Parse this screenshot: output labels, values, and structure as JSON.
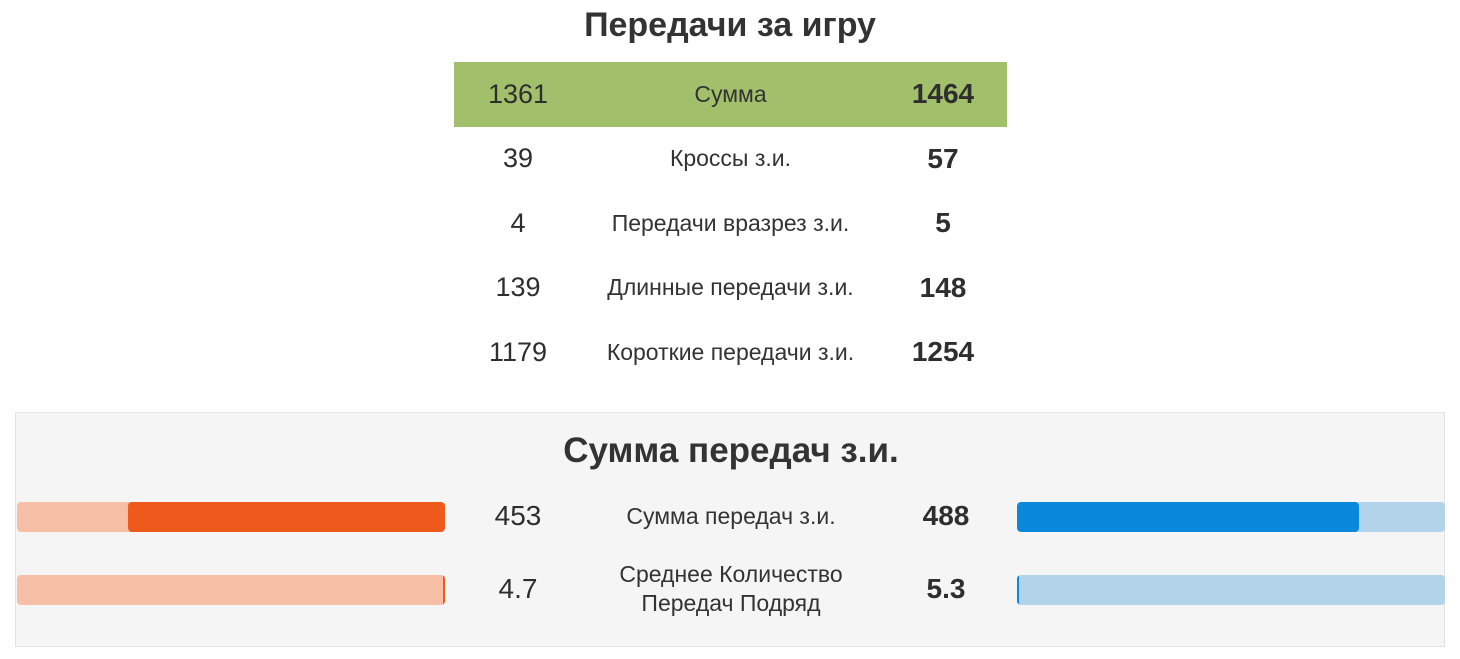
{
  "passes_per_game": {
    "title": "Передачи за игру",
    "rows": [
      {
        "left": "1361",
        "label": "Сумма",
        "right": "1464"
      },
      {
        "left": "39",
        "label": "Кроссы з.и.",
        "right": "57"
      },
      {
        "left": "4",
        "label": "Передачи вразрез з.и.",
        "right": "5"
      },
      {
        "left": "139",
        "label": "Длинные передачи з.и.",
        "right": "148"
      },
      {
        "left": "1179",
        "label": "Короткие передачи з.и.",
        "right": "1254"
      }
    ]
  },
  "completed_passes": {
    "title": "Сумма передач з.и.",
    "rows": [
      {
        "left": "453",
        "label": "Сумма передач з.и.",
        "right": "488",
        "left_share": 0.74,
        "right_share": 0.8
      },
      {
        "left": "4.7",
        "label_line1": "Среднее Количество",
        "label_line2": "Передач Подряд",
        "right": "5.3",
        "left_share": 0.005,
        "right_share": 0.005
      }
    ]
  },
  "colors": {
    "total_row": "#a2c06b",
    "left_fill": "#ee5a1c",
    "left_track": "#f7bfa5",
    "right_fill": "#0a88dc",
    "right_track": "#b3d3ea"
  }
}
